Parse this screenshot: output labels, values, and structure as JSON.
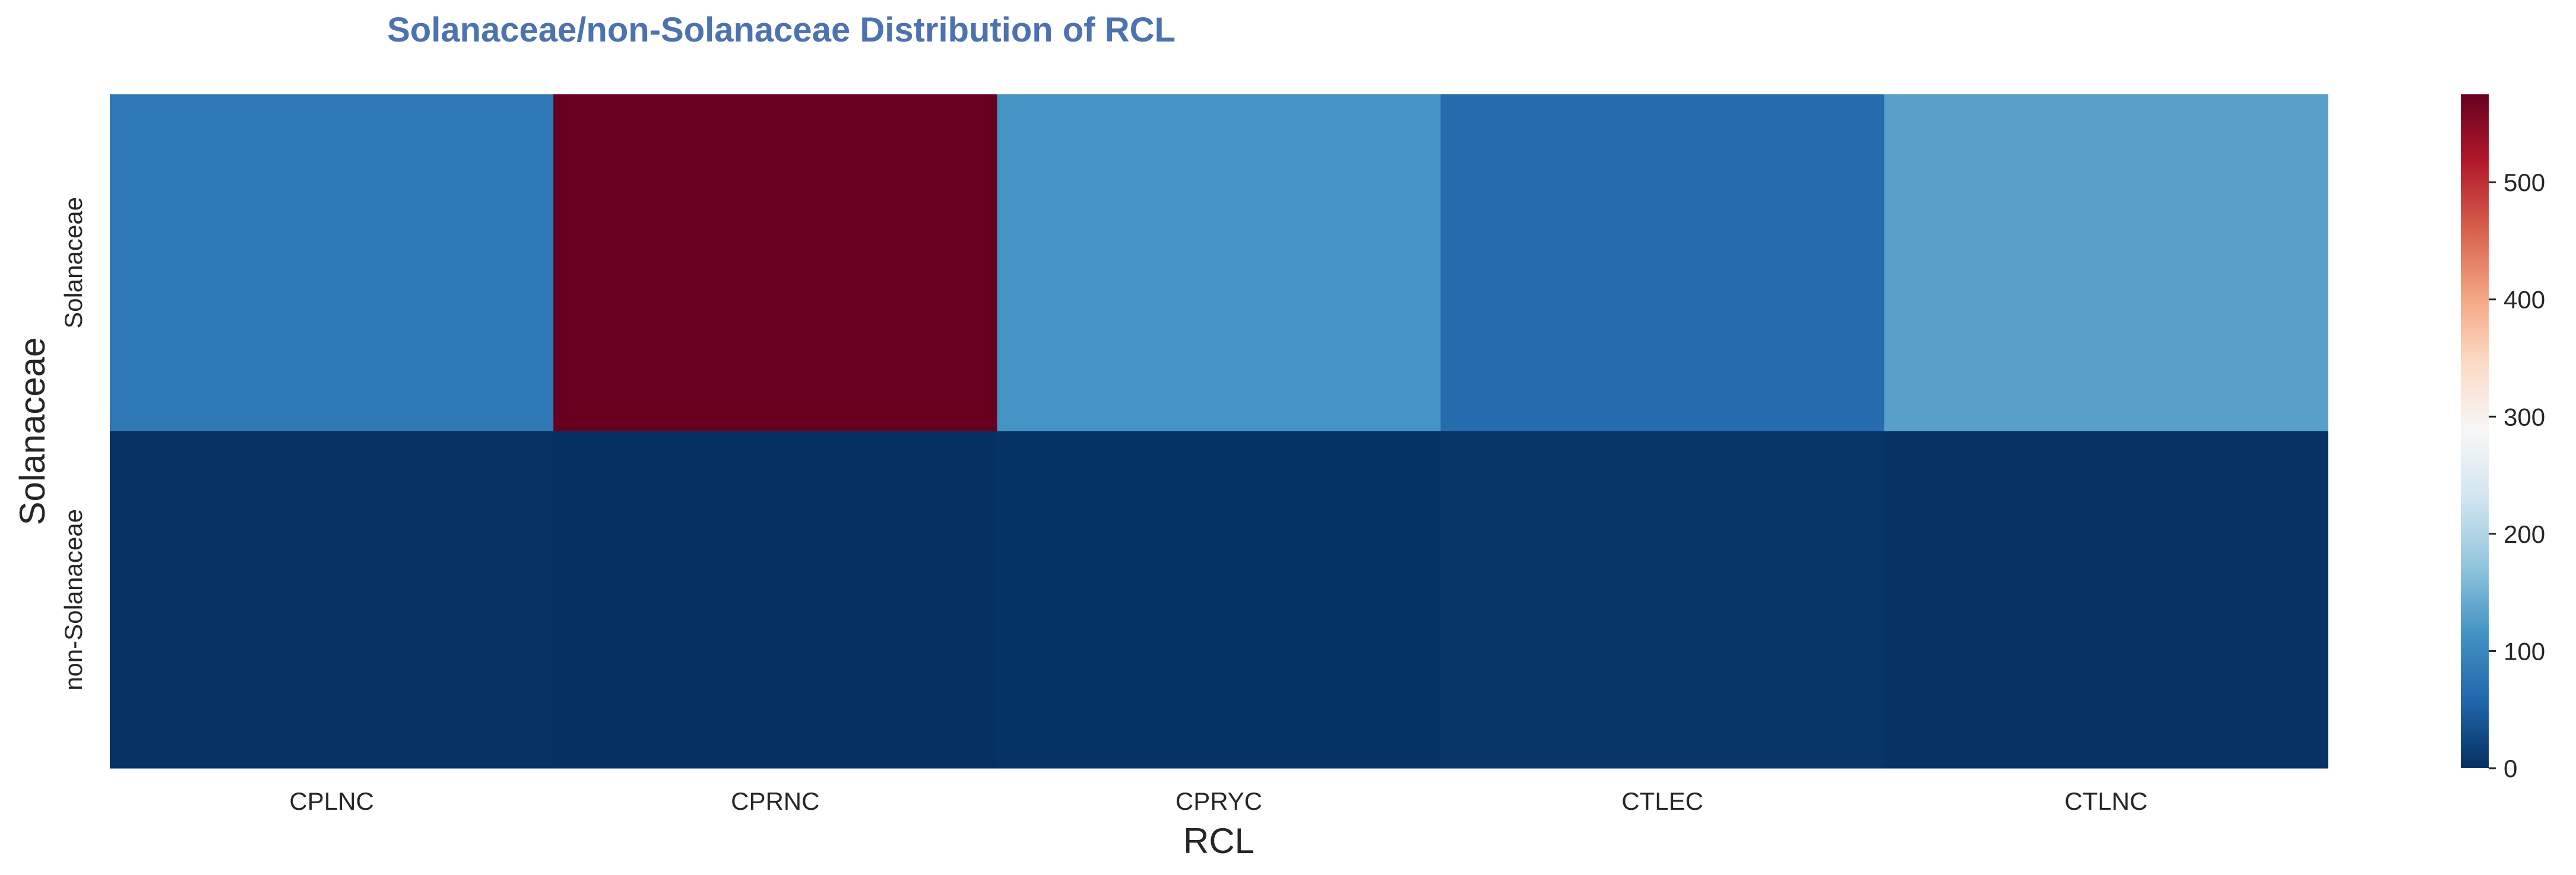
{
  "chart_data": {
    "type": "heatmap",
    "title": "Solanaceae/non-Solanaceae Distribution of RCL",
    "xlabel": "RCL",
    "ylabel": "Solanaceae",
    "x_categories": [
      "CPLNC",
      "CPRNC",
      "CPRYC",
      "CTLEC",
      "CTLNC"
    ],
    "y_categories": [
      "Solanaceae",
      "non-Solanaceae"
    ],
    "values": [
      [
        80,
        575,
        115,
        65,
        130
      ],
      [
        2,
        1,
        3,
        6,
        2
      ]
    ],
    "colormap": "RdBu_r",
    "colorbar": {
      "range": [
        0,
        575
      ],
      "ticks": [
        0,
        100,
        200,
        300,
        400,
        500
      ],
      "tick_labels": [
        "0",
        "100",
        "200",
        "300",
        "400",
        "500"
      ]
    }
  }
}
